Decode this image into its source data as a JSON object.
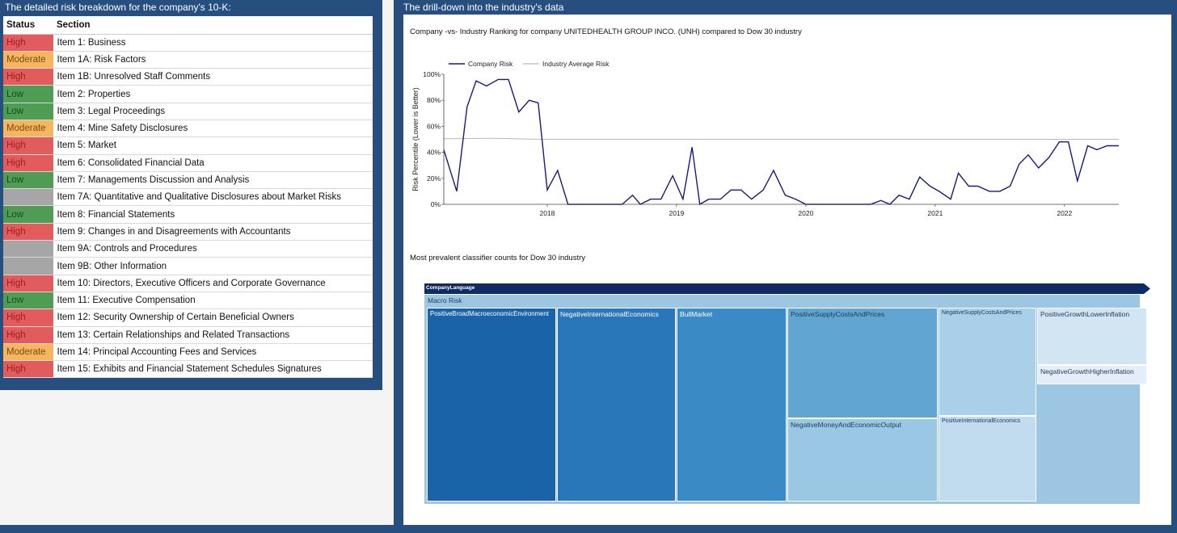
{
  "left": {
    "title": "The detailed risk breakdown for the company's 10-K:",
    "headers": {
      "status": "Status",
      "section": "Section"
    },
    "rows": [
      {
        "status": "High",
        "section": "Item 1: Business"
      },
      {
        "status": "Moderate",
        "section": "Item 1A: Risk Factors"
      },
      {
        "status": "High",
        "section": "Item 1B: Unresolved Staff Comments"
      },
      {
        "status": "Low",
        "section": "Item 2: Properties"
      },
      {
        "status": "Low",
        "section": "Item 3: Legal Proceedings"
      },
      {
        "status": "Moderate",
        "section": "Item 4: Mine Safety Disclosures"
      },
      {
        "status": "High",
        "section": "Item 5: Market"
      },
      {
        "status": "High",
        "section": "Item 6: Consolidated Financial Data"
      },
      {
        "status": "Low",
        "section": "Item 7: Managements Discussion and Analysis"
      },
      {
        "status": "",
        "section": "Item 7A: Quantitative and Qualitative Disclosures about Market Risks"
      },
      {
        "status": "Low",
        "section": "Item 8: Financial Statements"
      },
      {
        "status": "High",
        "section": "Item 9: Changes in and Disagreements with Accountants"
      },
      {
        "status": "",
        "section": "Item 9A: Controls and Procedures"
      },
      {
        "status": "",
        "section": "Item 9B: Other Information"
      },
      {
        "status": "High",
        "section": "Item 10: Directors, Executive Officers and Corporate Governance"
      },
      {
        "status": "Low",
        "section": "Item 11: Executive Compensation"
      },
      {
        "status": "High",
        "section": "Item 12: Security Ownership of Certain Beneficial Owners"
      },
      {
        "status": "High",
        "section": "Item 13: Certain Relationships and Related Transactions"
      },
      {
        "status": "Moderate",
        "section": "Item 14: Principal Accounting Fees and Services"
      },
      {
        "status": "High",
        "section": "Item 15: Exhibits and Financial Statement Schedules Signatures"
      }
    ]
  },
  "right": {
    "title": "The drill-down into the industry's data",
    "chart_title": "Company -vs- Industry Ranking for company UNITEDHEALTH GROUP INCO. (UNH) compared to Dow 30 industry",
    "treemap_title": "Most prevalent classifier counts for Dow 30 industry"
  },
  "colors": {
    "panel": "#264f80",
    "high": "#e25b5d",
    "moderate": "#f6b660",
    "low": "#4f9c55",
    "none": "#a6a6a6",
    "company_line": "#1a1a7a",
    "industry_line": "#bbbbbb"
  },
  "chart_data": [
    {
      "type": "line",
      "ylabel": "Risk Percentile (Lower is Better)",
      "ylim": [
        0,
        100
      ],
      "yticks": [
        "0%",
        "20%",
        "40%",
        "60%",
        "80%",
        "100%"
      ],
      "xlim": [
        2017.2,
        2022.42
      ],
      "xticks": [
        2018,
        2019,
        2020,
        2021,
        2022
      ],
      "xtick_labels": [
        "2018",
        "2019",
        "2020",
        "2021",
        "2022"
      ],
      "legend_position": "top-left",
      "series": [
        {
          "name": "Company Risk",
          "x": [
            2017.2,
            2017.3,
            2017.38,
            2017.45,
            2017.53,
            2017.62,
            2017.7,
            2017.78,
            2017.86,
            2017.93,
            2018.0,
            2018.08,
            2018.16,
            2018.3,
            2018.45,
            2018.58,
            2018.66,
            2018.72,
            2018.8,
            2018.88,
            2018.97,
            2019.05,
            2019.12,
            2019.18,
            2019.25,
            2019.34,
            2019.42,
            2019.5,
            2019.58,
            2019.67,
            2019.75,
            2019.84,
            2019.92,
            2020.0,
            2020.15,
            2020.32,
            2020.5,
            2020.58,
            2020.65,
            2020.72,
            2020.8,
            2020.88,
            2020.96,
            2021.03,
            2021.12,
            2021.18,
            2021.26,
            2021.33,
            2021.42,
            2021.5,
            2021.58,
            2021.65,
            2021.72,
            2021.8,
            2021.88,
            2021.96,
            2022.03,
            2022.1,
            2022.18,
            2022.25,
            2022.33,
            2022.42
          ],
          "y": [
            42,
            10,
            75,
            95,
            91,
            96,
            96,
            71,
            80,
            78,
            11,
            26,
            0,
            0,
            0,
            0,
            7,
            0,
            4,
            4,
            22,
            4,
            44,
            0,
            4,
            4,
            11,
            11,
            4,
            11,
            26,
            7,
            4,
            0,
            0,
            0,
            0,
            3,
            0,
            7,
            4,
            21,
            14,
            10,
            4,
            24,
            14,
            14,
            10,
            10,
            14,
            31,
            38,
            28,
            36,
            48,
            48,
            18,
            45,
            42,
            45,
            45
          ]
        },
        {
          "name": "Industry Average Risk",
          "x": [
            2017.2,
            2017.6,
            2017.85,
            2018.0,
            2019.0,
            2020.0,
            2021.0,
            2022.0,
            2022.42
          ],
          "y": [
            50.5,
            50.8,
            50.2,
            50,
            50,
            50,
            50,
            50,
            50
          ]
        }
      ]
    },
    {
      "type": "treemap",
      "root": "CompanyLanguage",
      "group": "Macro Risk",
      "cells": [
        {
          "label": "PositiveBroadMacroeconomicEnvironment",
          "color": "#1a63a8"
        },
        {
          "label": "NegativeInternationalEconomics",
          "color": "#2977b8"
        },
        {
          "label": "BullMarket",
          "color": "#3a8ac5"
        },
        {
          "label": "PositiveSupplyCostsAndPrices",
          "color": "#61a5d2"
        },
        {
          "label": "NegativeMoneyAndEconomicOutput",
          "color": "#9ac7e4"
        },
        {
          "label": "NegativeSupplyCostsAndPrices",
          "color": "#a9d0e8"
        },
        {
          "label": "PositiveInternationalEconomics",
          "color": "#c1dbef"
        },
        {
          "label": "PositiveGrowthLowerInflation",
          "color": "#d2e5f3"
        },
        {
          "label": "NegativeGrowthHigherInflation",
          "color": "#e3eef8"
        }
      ]
    }
  ]
}
